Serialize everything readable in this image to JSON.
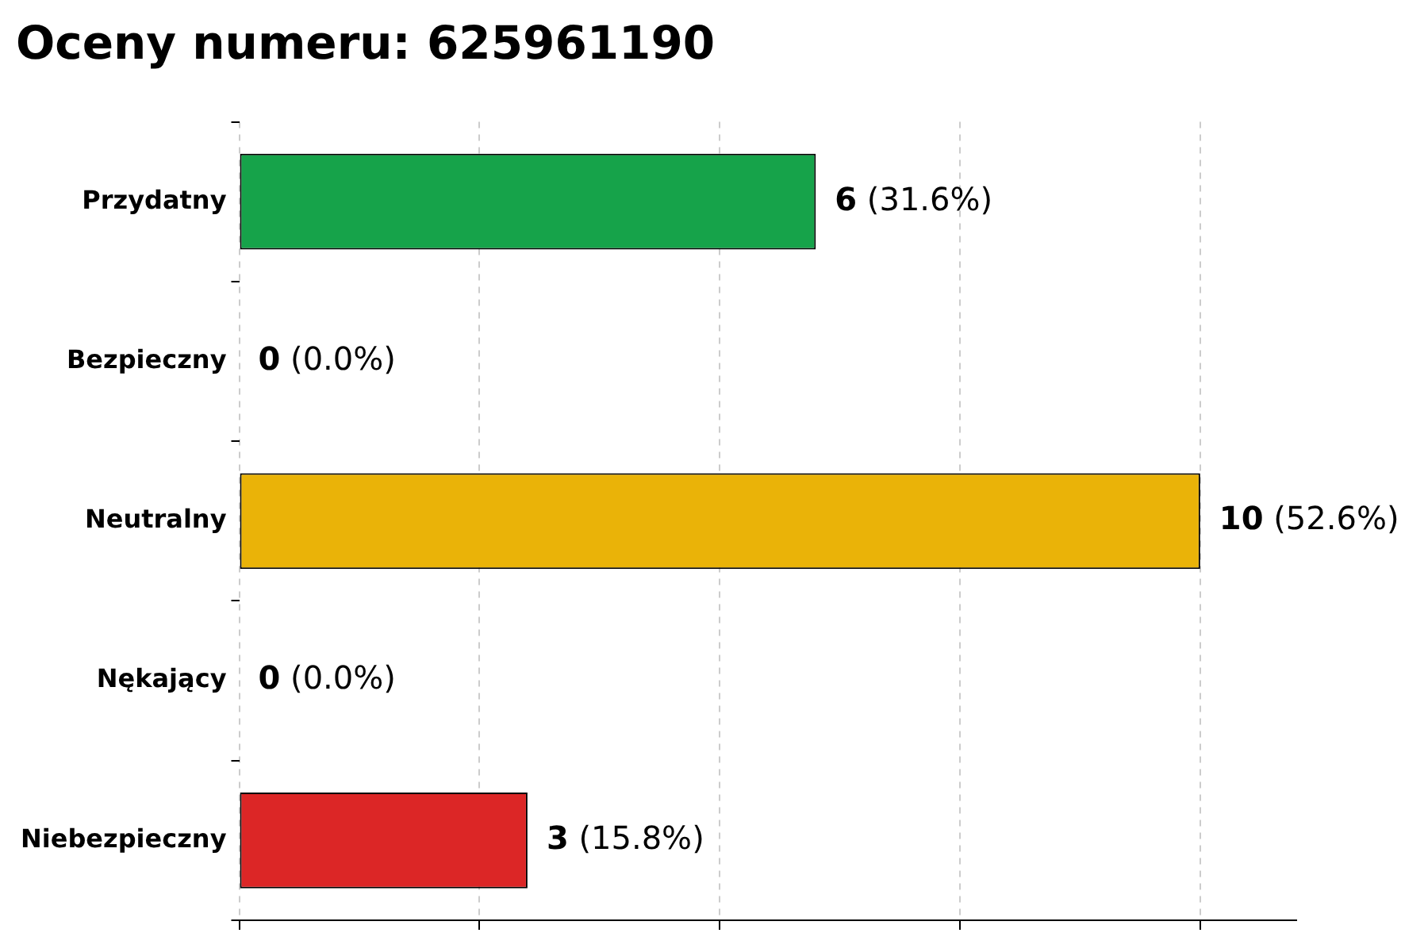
{
  "chart_data": {
    "type": "bar",
    "orientation": "horizontal",
    "title": "Oceny numeru: 625961190",
    "categories": [
      "Przydatny",
      "Bezpieczny",
      "Neutralny",
      "Nękający",
      "Niebezpieczny"
    ],
    "values": [
      6,
      0,
      10,
      0,
      3
    ],
    "colors": [
      "#16a34a",
      "#2563eb",
      "#eab308",
      "#f97316",
      "#dc2626"
    ],
    "value_labels": [
      "6 (31.6%)",
      "0 (0.0%)",
      "10 (52.6%)",
      "0 (0.0%)",
      "3 (15.8%)"
    ],
    "xlim": [
      0,
      11
    ],
    "xticks": [
      {
        "value": 0,
        "label": null
      },
      {
        "value": 2.5,
        "label": null
      },
      {
        "value": 5,
        "label": null
      },
      {
        "value": 7.5,
        "label": null
      },
      {
        "value": 10,
        "label": null
      }
    ],
    "grid": "x",
    "legend": false,
    "tick_labels": "y"
  }
}
